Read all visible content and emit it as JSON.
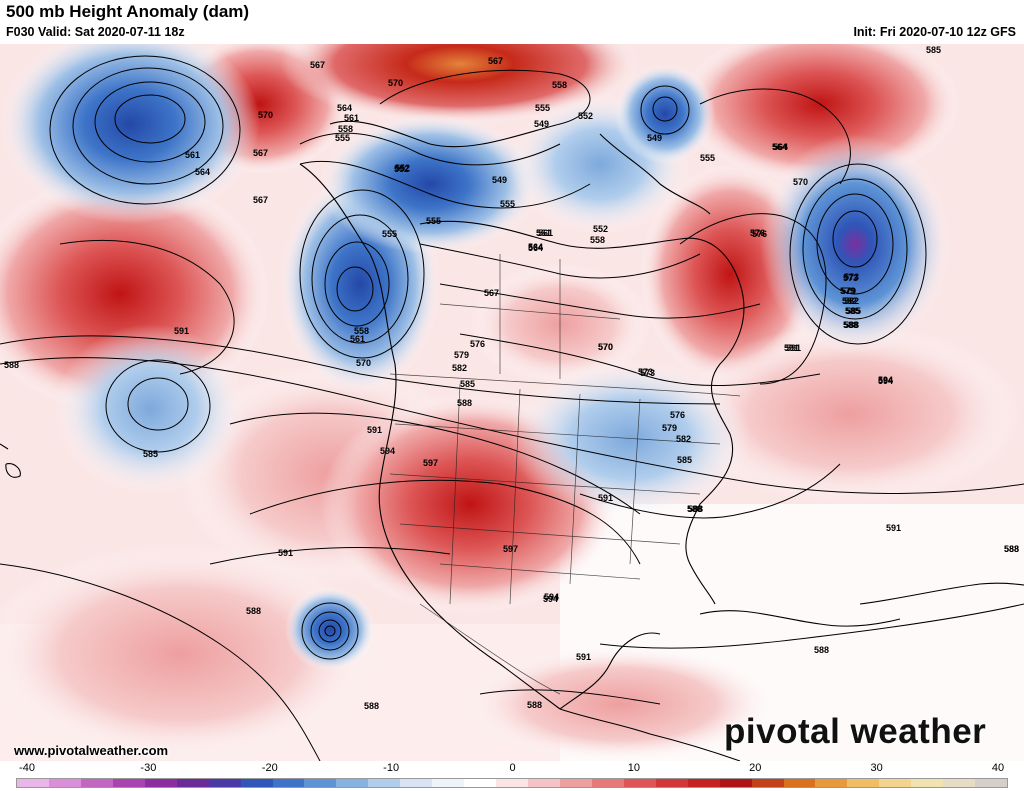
{
  "header": {
    "title": "500 mb Height Anomaly (dam)",
    "valid": "F030 Valid: Sat 2020-07-11 18z",
    "init": "Init: Fri 2020-07-10 12z GFS"
  },
  "footer": {
    "website": "www.pivotalweather.com",
    "brand": "pivotal weather"
  },
  "colorbar": {
    "ticks": [
      "-40",
      "-30",
      "-20",
      "-10",
      "0",
      "10",
      "20",
      "30",
      "40"
    ],
    "colors": [
      "#e8b6e8",
      "#d98fd9",
      "#c266c2",
      "#a844b0",
      "#8b2fa0",
      "#6a2a9a",
      "#4a3aa8",
      "#2f56b8",
      "#3d74c8",
      "#5e94d6",
      "#86b2e2",
      "#b0cdec",
      "#d6e4f3",
      "#eef4fa",
      "#ffffff",
      "#fbe4e4",
      "#f5c3c3",
      "#ee9f9f",
      "#e67a7a",
      "#dd5555",
      "#d33636",
      "#c42222",
      "#b01414",
      "#c2401a",
      "#d8701e",
      "#e89a3a",
      "#f0bc64",
      "#f3d48e",
      "#f1e2b2",
      "#e6dcc6",
      "#d4cfc8"
    ]
  },
  "contour_labels": [
    "585",
    "567",
    "570",
    "567",
    "564",
    "561",
    "558",
    "555",
    "552",
    "549",
    "555",
    "552",
    "549",
    "558",
    "555",
    "561",
    "564",
    "567",
    "570",
    "564",
    "561",
    "555",
    "558",
    "552",
    "549",
    "555",
    "552",
    "561",
    "564",
    "567",
    "570",
    "555",
    "558",
    "561",
    "564",
    "567",
    "570",
    "573",
    "576",
    "579",
    "582",
    "585",
    "588",
    "591",
    "594",
    "597",
    "597",
    "594",
    "591",
    "588",
    "585",
    "582",
    "579",
    "576",
    "573",
    "570",
    "576",
    "579",
    "573",
    "582",
    "585",
    "588",
    "591",
    "594",
    "588",
    "591",
    "588",
    "588",
    "588",
    "591",
    "594",
    "588",
    "591",
    "588",
    "585",
    "588",
    "564",
    "570",
    "576",
    "573",
    "579",
    "582",
    "585",
    "588",
    "591",
    "594",
    "591",
    "588"
  ],
  "map_features": {
    "colors": {
      "strong_low": "#2a5cb8",
      "weak_low": "#a9c8e8",
      "strong_high": "#c21a1a",
      "weak_high": "#f3c4c4",
      "contour": "#000000"
    }
  }
}
